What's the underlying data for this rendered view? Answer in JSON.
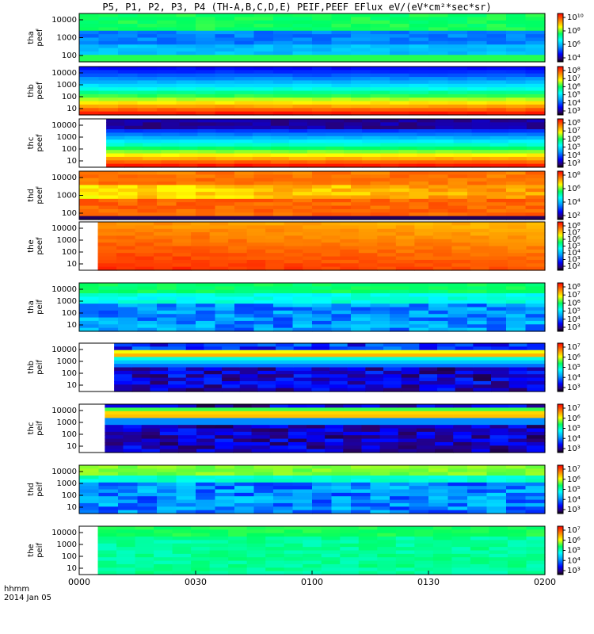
{
  "title": "P5, P1, P2, P3, P4 (TH-A,B,C,D,E) PEIF,PEEF EFlux eV/(eV*cm²*sec*sr)",
  "footer": {
    "line1": "hhmm",
    "line2": "2014 Jan 05"
  },
  "chart_data": {
    "type": "heatmap",
    "x_tick_labels": [
      "0000",
      "0030",
      "0100",
      "0130",
      "0200"
    ],
    "x_range": [
      "0000",
      "0200"
    ],
    "panels": [
      {
        "ylabel": [
          "tha",
          "peef"
        ],
        "y_ticks": [
          "10000",
          "1000",
          "100"
        ],
        "cbar_ticks": [
          "10¹⁰",
          "10⁸",
          "10⁶",
          "10⁴"
        ],
        "data_start": 0.0,
        "scheme": "tha_peef"
      },
      {
        "ylabel": [
          "thb",
          "peef"
        ],
        "y_ticks": [
          "10000",
          "1000",
          "100",
          "10"
        ],
        "cbar_ticks": [
          "10⁸",
          "10⁷",
          "10⁶",
          "10⁵",
          "10⁴",
          "10³"
        ],
        "data_start": 0.0,
        "scheme": "thb_peef"
      },
      {
        "ylabel": [
          "thc",
          "peef"
        ],
        "y_ticks": [
          "10000",
          "1000",
          "100",
          "10"
        ],
        "cbar_ticks": [
          "10⁸",
          "10⁷",
          "10⁶",
          "10⁵",
          "10⁴",
          "10³"
        ],
        "data_start": 0.058,
        "scheme": "thc_peef"
      },
      {
        "ylabel": [
          "thd",
          "peef"
        ],
        "y_ticks": [
          "10000",
          "1000",
          "100"
        ],
        "cbar_ticks": [
          "10⁸",
          "10⁶",
          "10⁴",
          "10²"
        ],
        "data_start": 0.0,
        "scheme": "thd_peef"
      },
      {
        "ylabel": [
          "the",
          "peef"
        ],
        "y_ticks": [
          "10000",
          "1000",
          "100",
          "10"
        ],
        "cbar_ticks": [
          "10⁸",
          "10⁷",
          "10⁶",
          "10⁵",
          "10⁴",
          "10³",
          "10²"
        ],
        "data_start": 0.04,
        "scheme": "the_peef"
      },
      {
        "ylabel": [
          "tha",
          "peif"
        ],
        "y_ticks": [
          "10000",
          "1000",
          "100",
          "10"
        ],
        "cbar_ticks": [
          "10⁸",
          "10⁷",
          "10⁶",
          "10⁵",
          "10⁴",
          "10³"
        ],
        "data_start": 0.0,
        "scheme": "tha_peif"
      },
      {
        "ylabel": [
          "thb",
          "peif"
        ],
        "y_ticks": [
          "10000",
          "1000",
          "100",
          "10"
        ],
        "cbar_ticks": [
          "10⁷",
          "10⁶",
          "10⁵",
          "10⁴",
          "10³"
        ],
        "data_start": 0.075,
        "scheme": "thb_peif"
      },
      {
        "ylabel": [
          "thc",
          "peif"
        ],
        "y_ticks": [
          "10000",
          "1000",
          "100",
          "10"
        ],
        "cbar_ticks": [
          "10⁷",
          "10⁶",
          "10⁵",
          "10⁴",
          "10³"
        ],
        "data_start": 0.055,
        "scheme": "thc_peif"
      },
      {
        "ylabel": [
          "thd",
          "peif"
        ],
        "y_ticks": [
          "10000",
          "1000",
          "100",
          "10"
        ],
        "cbar_ticks": [
          "10⁷",
          "10⁶",
          "10⁵",
          "10⁴",
          "10³"
        ],
        "data_start": 0.0,
        "scheme": "thd_peif"
      },
      {
        "ylabel": [
          "the",
          "peif"
        ],
        "y_ticks": [
          "10000",
          "1000",
          "100",
          "10"
        ],
        "cbar_ticks": [
          "10⁷",
          "10⁶",
          "10⁵",
          "10⁴",
          "10³"
        ],
        "data_start": 0.04,
        "scheme": "the_peif"
      }
    ]
  }
}
